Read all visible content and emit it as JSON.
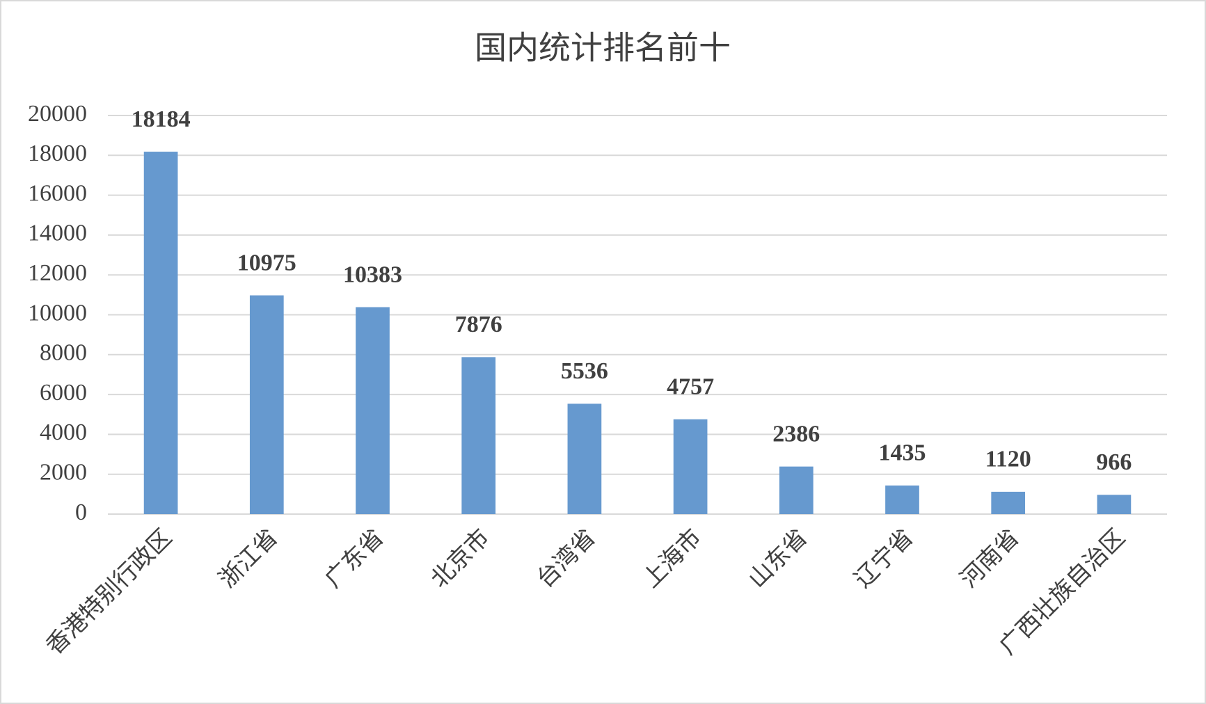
{
  "chart_data": {
    "type": "bar",
    "title": "国内统计排名前十",
    "categories": [
      "香港特别行政区",
      "浙江省",
      "广东省",
      "北京市",
      "台湾省",
      "上海市",
      "山东省",
      "辽宁省",
      "河南省",
      "广西壮族自治区"
    ],
    "values": [
      18184,
      10975,
      10383,
      7876,
      5536,
      4757,
      2386,
      1435,
      1120,
      966
    ],
    "color": "#6699cf",
    "ylim": [
      0,
      20000
    ],
    "yticks": [
      0,
      2000,
      4000,
      6000,
      8000,
      10000,
      12000,
      14000,
      16000,
      18000,
      20000
    ],
    "grid": true
  }
}
